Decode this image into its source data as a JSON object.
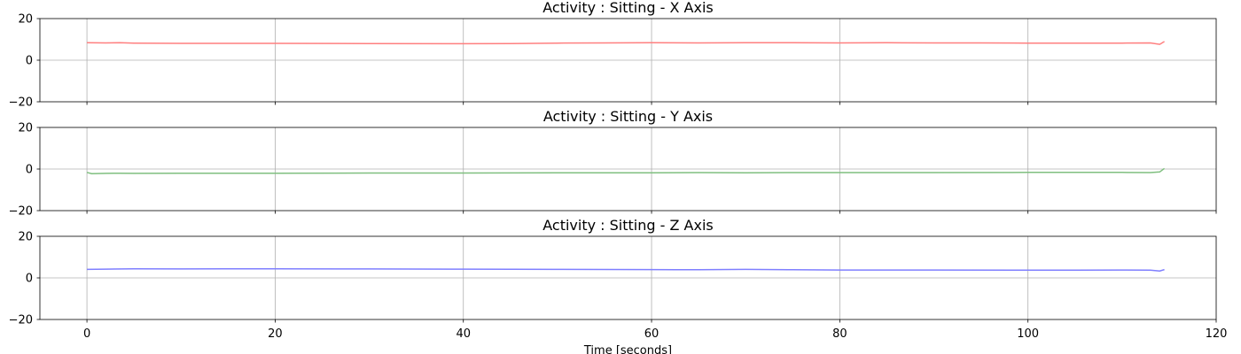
{
  "chart_data": [
    {
      "type": "line",
      "title": "Activity : Sitting - X Axis",
      "ylim": [
        -20,
        20
      ],
      "xlim": [
        -5,
        120
      ],
      "yticks": [
        -20,
        0,
        20
      ],
      "xticks": [
        0,
        20,
        40,
        60,
        80,
        100,
        120
      ],
      "xtick_labels_visible": false,
      "xlabel": "",
      "grid": true,
      "series": [
        {
          "color": "#ff7f7f",
          "x": [
            0,
            2,
            3.5,
            5,
            10,
            20,
            30,
            40,
            45,
            50,
            55,
            60,
            65,
            70,
            75,
            80,
            85,
            90,
            95,
            100,
            105,
            110,
            113,
            114,
            114.5
          ],
          "y": [
            8.4,
            8.3,
            8.4,
            8.2,
            8.1,
            8.1,
            8.0,
            7.9,
            8.0,
            8.2,
            8.3,
            8.4,
            8.3,
            8.4,
            8.4,
            8.3,
            8.4,
            8.3,
            8.3,
            8.2,
            8.2,
            8.2,
            8.3,
            7.6,
            9.0
          ]
        }
      ]
    },
    {
      "type": "line",
      "title": "Activity : Sitting - Y Axis",
      "ylim": [
        -20,
        20
      ],
      "xlim": [
        -5,
        120
      ],
      "yticks": [
        -20,
        0,
        20
      ],
      "xticks": [
        0,
        20,
        40,
        60,
        80,
        100,
        120
      ],
      "xtick_labels_visible": false,
      "xlabel": "",
      "grid": true,
      "series": [
        {
          "color": "#7fbf7f",
          "x": [
            0,
            0.5,
            2,
            3.5,
            5,
            10,
            20,
            30,
            40,
            50,
            60,
            65,
            70,
            75,
            80,
            90,
            100,
            105,
            110,
            113,
            114,
            114.5
          ],
          "y": [
            -1.6,
            -2.2,
            -2.1,
            -2.0,
            -2.1,
            -2.0,
            -2.0,
            -1.9,
            -1.9,
            -1.8,
            -1.8,
            -1.7,
            -1.8,
            -1.7,
            -1.7,
            -1.7,
            -1.6,
            -1.6,
            -1.6,
            -1.7,
            -1.4,
            0.3
          ]
        }
      ]
    },
    {
      "type": "line",
      "title": "Activity : Sitting - Z Axis",
      "ylim": [
        -20,
        20
      ],
      "xlim": [
        -5,
        120
      ],
      "yticks": [
        -20,
        0,
        20
      ],
      "xticks": [
        0,
        20,
        40,
        60,
        80,
        100,
        120
      ],
      "xlabel": "Time [seconds]",
      "grid": true,
      "series": [
        {
          "color": "#7f7fff",
          "x": [
            0,
            2,
            5,
            10,
            20,
            30,
            40,
            50,
            60,
            65,
            70,
            75,
            80,
            90,
            100,
            105,
            110,
            113,
            114,
            114.5
          ],
          "y": [
            4.1,
            4.2,
            4.4,
            4.3,
            4.4,
            4.3,
            4.2,
            4.1,
            4.0,
            3.9,
            4.1,
            3.9,
            3.8,
            3.8,
            3.7,
            3.7,
            3.8,
            3.7,
            3.3,
            4.0
          ]
        }
      ]
    }
  ]
}
